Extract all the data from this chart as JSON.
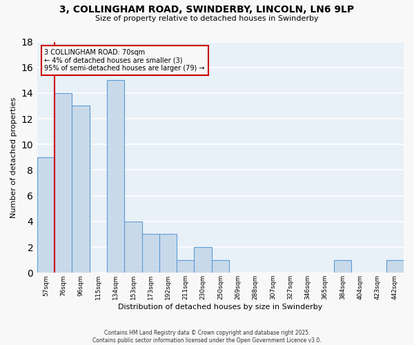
{
  "title_line1": "3, COLLINGHAM ROAD, SWINDERBY, LINCOLN, LN6 9LP",
  "title_line2": "Size of property relative to detached houses in Swinderby",
  "xlabel": "Distribution of detached houses by size in Swinderby",
  "ylabel": "Number of detached properties",
  "bins": [
    "57sqm",
    "76sqm",
    "96sqm",
    "115sqm",
    "134sqm",
    "153sqm",
    "173sqm",
    "192sqm",
    "211sqm",
    "230sqm",
    "250sqm",
    "269sqm",
    "288sqm",
    "307sqm",
    "327sqm",
    "346sqm",
    "365sqm",
    "384sqm",
    "404sqm",
    "423sqm",
    "442sqm"
  ],
  "counts": [
    9,
    14,
    13,
    0,
    15,
    4,
    3,
    3,
    1,
    2,
    1,
    0,
    0,
    0,
    0,
    0,
    0,
    1,
    0,
    0,
    1
  ],
  "bar_color": "#c8daea",
  "bar_edge_color": "#5b9bd5",
  "vline_color": "#cc0000",
  "vline_x_index": 0,
  "annotation_line1": "3 COLLINGHAM ROAD: 70sqm",
  "annotation_line2": "← 4% of detached houses are smaller (3)",
  "annotation_line3": "95% of semi-detached houses are larger (79) →",
  "annotation_box_edgecolor": "#cc0000",
  "ylim": [
    0,
    18
  ],
  "yticks": [
    0,
    2,
    4,
    6,
    8,
    10,
    12,
    14,
    16,
    18
  ],
  "footer_line1": "Contains HM Land Registry data © Crown copyright and database right 2025.",
  "footer_line2": "Contains public sector information licensed under the Open Government Licence v3.0.",
  "plot_bg_color": "#e8f0f8",
  "fig_bg_color": "#f8f8f8",
  "grid_color": "#ffffff"
}
